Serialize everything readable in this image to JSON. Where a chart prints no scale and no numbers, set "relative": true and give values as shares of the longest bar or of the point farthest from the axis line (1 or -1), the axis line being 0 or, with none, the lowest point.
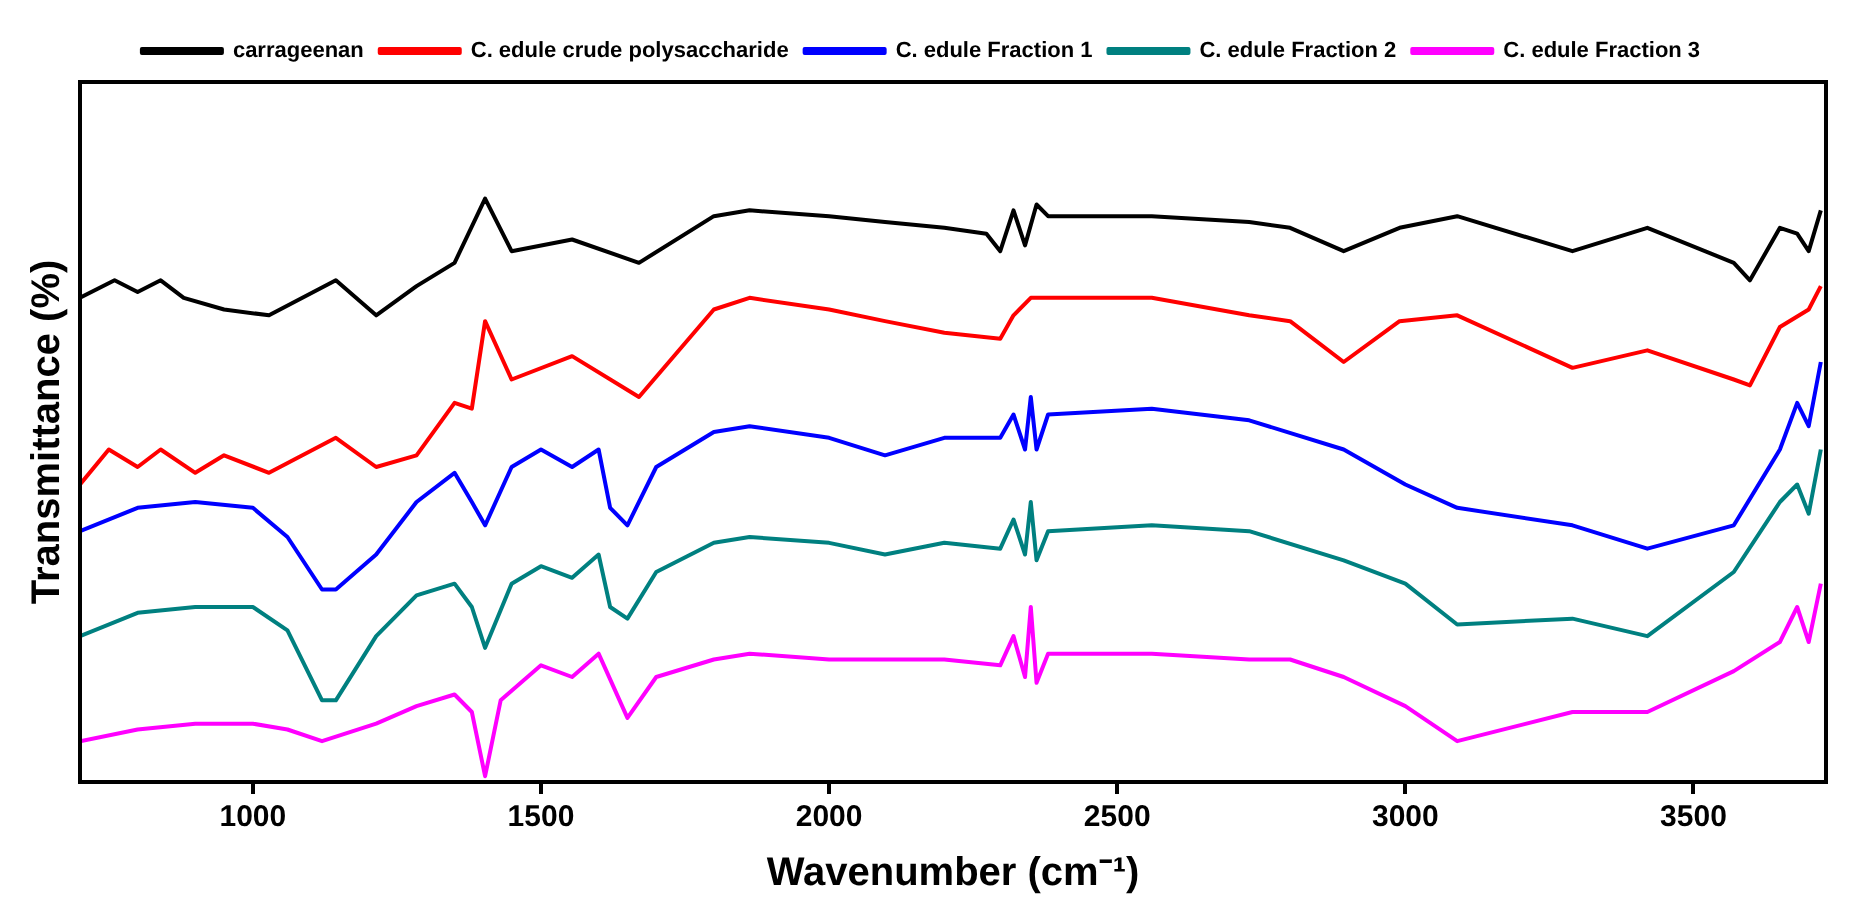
{
  "chart_data": {
    "type": "line",
    "relative": true,
    "xlabel": "Wavenumber (cm⁻¹)",
    "ylabel": "Transmittance (%)",
    "xlim": [
      700,
      3730
    ],
    "xticks": [
      1000,
      1500,
      2000,
      2500,
      3000,
      3500
    ],
    "grid": false,
    "legend": "top",
    "marker": "none",
    "line_style": "solid",
    "series": [
      {
        "name": "carrageenan",
        "color": "#000000",
        "x": [
          700,
          760,
          800,
          840,
          880,
          950,
          1028,
          1144,
          1214,
          1284,
          1350,
          1403,
          1449,
          1554,
          1670,
          1800,
          1862,
          2000,
          2097,
          2200,
          2273,
          2297,
          2320,
          2340,
          2360,
          2380,
          2560,
          2729,
          2800,
          2893,
          2990,
          3090,
          3290,
          3420,
          3570,
          3598,
          3650,
          3680,
          3700,
          3721
        ],
        "values": [
          0.83,
          0.86,
          0.84,
          0.86,
          0.83,
          0.81,
          0.8,
          0.86,
          0.8,
          0.85,
          0.89,
          1.0,
          0.91,
          0.93,
          0.89,
          0.97,
          0.98,
          0.97,
          0.96,
          0.95,
          0.94,
          0.91,
          0.98,
          0.92,
          0.99,
          0.97,
          0.97,
          0.96,
          0.95,
          0.91,
          0.95,
          0.97,
          0.91,
          0.95,
          0.89,
          0.86,
          0.95,
          0.94,
          0.91,
          0.98
        ]
      },
      {
        "name": "C. edule crude polysaccharide",
        "color": "#ff0000",
        "x": [
          700,
          750,
          800,
          840,
          900,
          950,
          1028,
          1144,
          1214,
          1284,
          1350,
          1380,
          1403,
          1449,
          1554,
          1670,
          1800,
          1862,
          2000,
          2097,
          2200,
          2297,
          2320,
          2350,
          2380,
          2560,
          2729,
          2800,
          2893,
          2990,
          3090,
          3290,
          3420,
          3570,
          3598,
          3650,
          3700,
          3721
        ],
        "values": [
          0.51,
          0.57,
          0.54,
          0.57,
          0.53,
          0.56,
          0.53,
          0.59,
          0.54,
          0.56,
          0.65,
          0.64,
          0.79,
          0.69,
          0.73,
          0.66,
          0.81,
          0.83,
          0.81,
          0.79,
          0.77,
          0.76,
          0.8,
          0.83,
          0.83,
          0.83,
          0.8,
          0.79,
          0.72,
          0.79,
          0.8,
          0.71,
          0.74,
          0.69,
          0.68,
          0.78,
          0.81,
          0.85
        ]
      },
      {
        "name": "C. edule Fraction 1",
        "color": "#0000ff",
        "x": [
          700,
          800,
          900,
          1000,
          1060,
          1120,
          1144,
          1214,
          1284,
          1350,
          1380,
          1403,
          1449,
          1500,
          1554,
          1600,
          1620,
          1650,
          1700,
          1800,
          1862,
          2000,
          2097,
          2200,
          2297,
          2320,
          2340,
          2350,
          2360,
          2380,
          2560,
          2729,
          2893,
          3000,
          3090,
          3290,
          3420,
          3570,
          3650,
          3680,
          3700,
          3721
        ],
        "values": [
          0.43,
          0.47,
          0.48,
          0.47,
          0.42,
          0.33,
          0.33,
          0.39,
          0.48,
          0.53,
          0.48,
          0.44,
          0.54,
          0.57,
          0.54,
          0.57,
          0.47,
          0.44,
          0.54,
          0.6,
          0.61,
          0.59,
          0.56,
          0.59,
          0.59,
          0.63,
          0.57,
          0.66,
          0.57,
          0.63,
          0.64,
          0.62,
          0.57,
          0.51,
          0.47,
          0.44,
          0.4,
          0.44,
          0.57,
          0.65,
          0.61,
          0.72
        ]
      },
      {
        "name": "C. edule Fraction 2",
        "color": "#008080",
        "x": [
          700,
          800,
          900,
          1000,
          1060,
          1120,
          1144,
          1214,
          1284,
          1350,
          1380,
          1403,
          1449,
          1500,
          1554,
          1600,
          1620,
          1650,
          1700,
          1800,
          1862,
          2000,
          2097,
          2200,
          2297,
          2320,
          2340,
          2350,
          2360,
          2380,
          2560,
          2729,
          2893,
          3000,
          3090,
          3290,
          3420,
          3570,
          3650,
          3680,
          3700,
          3721
        ],
        "values": [
          0.25,
          0.29,
          0.3,
          0.3,
          0.26,
          0.14,
          0.14,
          0.25,
          0.32,
          0.34,
          0.3,
          0.23,
          0.34,
          0.37,
          0.35,
          0.39,
          0.3,
          0.28,
          0.36,
          0.41,
          0.42,
          0.41,
          0.39,
          0.41,
          0.4,
          0.45,
          0.39,
          0.48,
          0.38,
          0.43,
          0.44,
          0.43,
          0.38,
          0.34,
          0.27,
          0.28,
          0.25,
          0.36,
          0.48,
          0.51,
          0.46,
          0.57
        ]
      },
      {
        "name": "C. edule Fraction 3",
        "color": "#ff00ff",
        "x": [
          700,
          800,
          900,
          1000,
          1060,
          1120,
          1214,
          1284,
          1350,
          1380,
          1403,
          1430,
          1500,
          1554,
          1600,
          1650,
          1700,
          1800,
          1862,
          2000,
          2200,
          2297,
          2320,
          2340,
          2350,
          2360,
          2380,
          2560,
          2729,
          2800,
          2893,
          3000,
          3090,
          3290,
          3420,
          3570,
          3650,
          3680,
          3700,
          3721
        ],
        "values": [
          0.07,
          0.09,
          0.1,
          0.1,
          0.09,
          0.07,
          0.1,
          0.13,
          0.15,
          0.12,
          0.01,
          0.14,
          0.2,
          0.18,
          0.22,
          0.11,
          0.18,
          0.21,
          0.22,
          0.21,
          0.21,
          0.2,
          0.25,
          0.18,
          0.3,
          0.17,
          0.22,
          0.22,
          0.21,
          0.21,
          0.18,
          0.13,
          0.07,
          0.12,
          0.12,
          0.19,
          0.24,
          0.3,
          0.24,
          0.34
        ]
      }
    ]
  }
}
